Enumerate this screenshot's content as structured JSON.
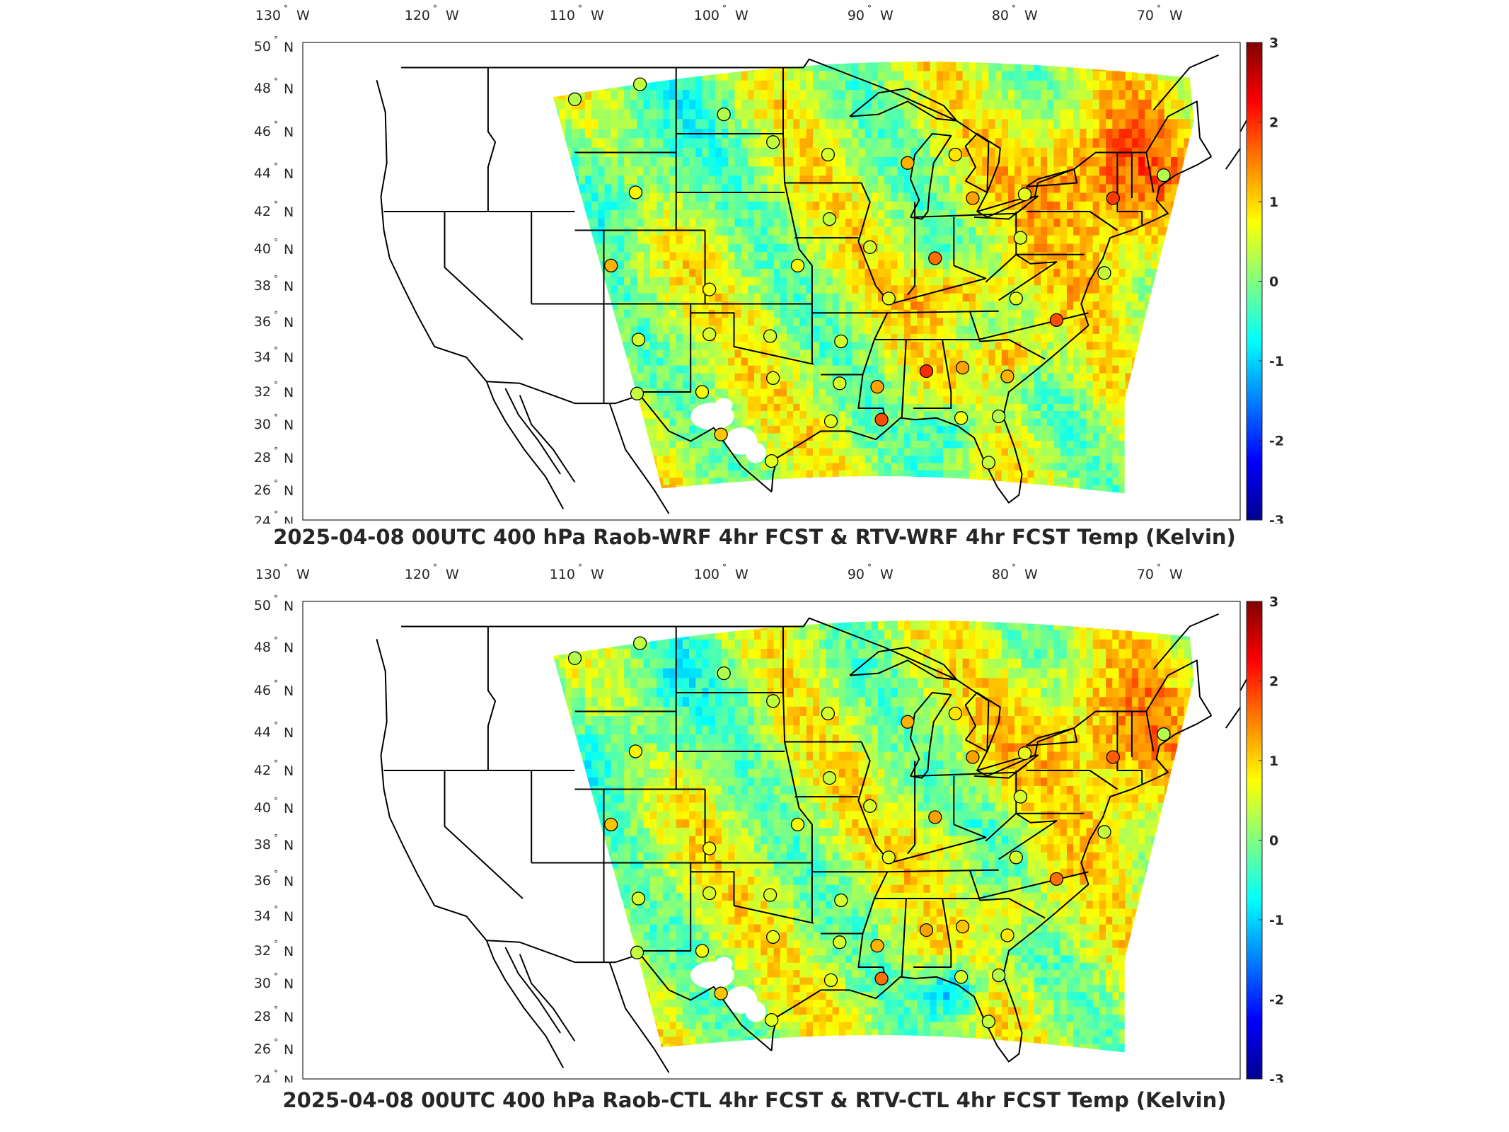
{
  "colors": {
    "colormap": [
      "#00008f",
      "#0000ff",
      "#0080ff",
      "#00ffff",
      "#80ff80",
      "#ffff00",
      "#ff8000",
      "#ff0000",
      "#800000"
    ],
    "axis": "#262626",
    "boundary": "#000000"
  },
  "map": {
    "projection": "lat-lon conic-like, CONUS",
    "lon_ticks": [
      "130",
      "120",
      "110",
      "100",
      "90",
      "80",
      "70"
    ],
    "lon_suffix": "W",
    "lat_ticks": [
      "50",
      "48",
      "46",
      "44",
      "42",
      "40",
      "38",
      "36",
      "34",
      "32",
      "30",
      "28",
      "26",
      "24"
    ],
    "lat_suffix": "N",
    "degree_symbol": "°"
  },
  "colorbar": {
    "ticks": [
      "3",
      "2",
      "1",
      "0",
      "-1",
      "-2",
      "-3"
    ],
    "range": [
      -3,
      3
    ]
  },
  "panels": [
    {
      "title": "2025-04-08 00UTC 400 hPa Raob-WRF 4hr FCST & RTV-WRF 4hr FCST Temp (Kelvin)",
      "stations": [
        {
          "lon": -111.0,
          "lat": 47.5,
          "value": 0.3
        },
        {
          "lon": -106.5,
          "lat": 48.2,
          "value": 0.4
        },
        {
          "lon": -100.7,
          "lat": 46.8,
          "value": 0.3
        },
        {
          "lon": -97.3,
          "lat": 45.5,
          "value": 0.4
        },
        {
          "lon": -93.5,
          "lat": 44.9,
          "value": 0.5
        },
        {
          "lon": -88.0,
          "lat": 44.5,
          "value": 1.2
        },
        {
          "lon": -84.7,
          "lat": 44.9,
          "value": 0.9
        },
        {
          "lon": -83.5,
          "lat": 42.7,
          "value": 1.3
        },
        {
          "lon": -79.9,
          "lat": 42.9,
          "value": 0.6
        },
        {
          "lon": -73.8,
          "lat": 42.7,
          "value": 1.9
        },
        {
          "lon": -70.3,
          "lat": 43.9,
          "value": 0.3
        },
        {
          "lon": -106.8,
          "lat": 43.0,
          "value": 0.8
        },
        {
          "lon": -108.5,
          "lat": 39.1,
          "value": 1.2
        },
        {
          "lon": -101.7,
          "lat": 37.8,
          "value": 0.7
        },
        {
          "lon": -95.6,
          "lat": 39.1,
          "value": 0.8
        },
        {
          "lon": -93.4,
          "lat": 41.6,
          "value": 0.4
        },
        {
          "lon": -90.6,
          "lat": 40.1,
          "value": 0.5
        },
        {
          "lon": -86.1,
          "lat": 39.5,
          "value": 1.6
        },
        {
          "lon": -80.2,
          "lat": 40.6,
          "value": 0.5
        },
        {
          "lon": -80.5,
          "lat": 37.3,
          "value": 0.6
        },
        {
          "lon": -77.7,
          "lat": 36.1,
          "value": 1.8
        },
        {
          "lon": -74.4,
          "lat": 38.7,
          "value": 0.4
        },
        {
          "lon": -89.3,
          "lat": 37.3,
          "value": 0.6
        },
        {
          "lon": -92.6,
          "lat": 34.9,
          "value": 0.5
        },
        {
          "lon": -97.5,
          "lat": 35.2,
          "value": 0.5
        },
        {
          "lon": -101.7,
          "lat": 35.3,
          "value": 0.5
        },
        {
          "lon": -106.6,
          "lat": 35.0,
          "value": 0.5
        },
        {
          "lon": -106.7,
          "lat": 31.9,
          "value": 0.4
        },
        {
          "lon": -102.2,
          "lat": 32.0,
          "value": 0.7
        },
        {
          "lon": -97.3,
          "lat": 32.8,
          "value": 0.6
        },
        {
          "lon": -92.7,
          "lat": 32.5,
          "value": 0.5
        },
        {
          "lon": -90.1,
          "lat": 32.3,
          "value": 1.3
        },
        {
          "lon": -86.7,
          "lat": 33.2,
          "value": 2.0
        },
        {
          "lon": -84.2,
          "lat": 33.4,
          "value": 1.3
        },
        {
          "lon": -81.1,
          "lat": 32.9,
          "value": 1.2
        },
        {
          "lon": -84.3,
          "lat": 30.4,
          "value": 0.7
        },
        {
          "lon": -81.7,
          "lat": 30.5,
          "value": 0.3
        },
        {
          "lon": -89.8,
          "lat": 30.3,
          "value": 1.8
        },
        {
          "lon": -93.3,
          "lat": 30.2,
          "value": 0.6
        },
        {
          "lon": -97.4,
          "lat": 27.8,
          "value": 0.6
        },
        {
          "lon": -100.9,
          "lat": 29.4,
          "value": 1.1
        },
        {
          "lon": -82.4,
          "lat": 27.7,
          "value": 0.4
        }
      ]
    },
    {
      "title": "2025-04-08 00UTC 400 hPa Raob-CTL 4hr FCST & RTV-CTL 4hr FCST Temp (Kelvin)",
      "stations": [
        {
          "lon": -111.0,
          "lat": 47.5,
          "value": 0.3
        },
        {
          "lon": -106.5,
          "lat": 48.2,
          "value": 0.4
        },
        {
          "lon": -100.7,
          "lat": 46.8,
          "value": 0.3
        },
        {
          "lon": -97.3,
          "lat": 45.5,
          "value": 0.4
        },
        {
          "lon": -93.5,
          "lat": 44.9,
          "value": 0.5
        },
        {
          "lon": -88.0,
          "lat": 44.5,
          "value": 1.2
        },
        {
          "lon": -84.7,
          "lat": 44.9,
          "value": 0.9
        },
        {
          "lon": -83.5,
          "lat": 42.7,
          "value": 1.3
        },
        {
          "lon": -79.9,
          "lat": 42.9,
          "value": 0.6
        },
        {
          "lon": -73.8,
          "lat": 42.7,
          "value": 1.7
        },
        {
          "lon": -70.3,
          "lat": 43.9,
          "value": 0.3
        },
        {
          "lon": -106.8,
          "lat": 43.0,
          "value": 0.8
        },
        {
          "lon": -108.5,
          "lat": 39.1,
          "value": 1.1
        },
        {
          "lon": -101.7,
          "lat": 37.8,
          "value": 0.7
        },
        {
          "lon": -95.6,
          "lat": 39.1,
          "value": 0.8
        },
        {
          "lon": -93.4,
          "lat": 41.6,
          "value": 0.4
        },
        {
          "lon": -90.6,
          "lat": 40.1,
          "value": 0.5
        },
        {
          "lon": -86.1,
          "lat": 39.5,
          "value": 1.3
        },
        {
          "lon": -80.2,
          "lat": 40.6,
          "value": 0.5
        },
        {
          "lon": -80.5,
          "lat": 37.3,
          "value": 0.5
        },
        {
          "lon": -77.7,
          "lat": 36.1,
          "value": 1.6
        },
        {
          "lon": -74.4,
          "lat": 38.7,
          "value": 0.4
        },
        {
          "lon": -89.3,
          "lat": 37.3,
          "value": 0.6
        },
        {
          "lon": -92.6,
          "lat": 34.9,
          "value": 0.5
        },
        {
          "lon": -97.5,
          "lat": 35.2,
          "value": 0.5
        },
        {
          "lon": -101.7,
          "lat": 35.3,
          "value": 0.5
        },
        {
          "lon": -106.6,
          "lat": 35.0,
          "value": 0.5
        },
        {
          "lon": -106.7,
          "lat": 31.9,
          "value": 0.4
        },
        {
          "lon": -102.2,
          "lat": 32.0,
          "value": 0.7
        },
        {
          "lon": -97.3,
          "lat": 32.8,
          "value": 0.6
        },
        {
          "lon": -92.7,
          "lat": 32.5,
          "value": 0.5
        },
        {
          "lon": -90.1,
          "lat": 32.3,
          "value": 1.2
        },
        {
          "lon": -86.7,
          "lat": 33.2,
          "value": 1.3
        },
        {
          "lon": -84.2,
          "lat": 33.4,
          "value": 1.1
        },
        {
          "lon": -81.1,
          "lat": 32.9,
          "value": 0.9
        },
        {
          "lon": -84.3,
          "lat": 30.4,
          "value": 0.5
        },
        {
          "lon": -81.7,
          "lat": 30.5,
          "value": 0.3
        },
        {
          "lon": -89.8,
          "lat": 30.3,
          "value": 1.6
        },
        {
          "lon": -93.3,
          "lat": 30.2,
          "value": 0.6
        },
        {
          "lon": -97.4,
          "lat": 27.8,
          "value": 0.6
        },
        {
          "lon": -100.9,
          "lat": 29.4,
          "value": 1.1
        },
        {
          "lon": -82.4,
          "lat": 27.7,
          "value": 0.4
        }
      ]
    }
  ]
}
